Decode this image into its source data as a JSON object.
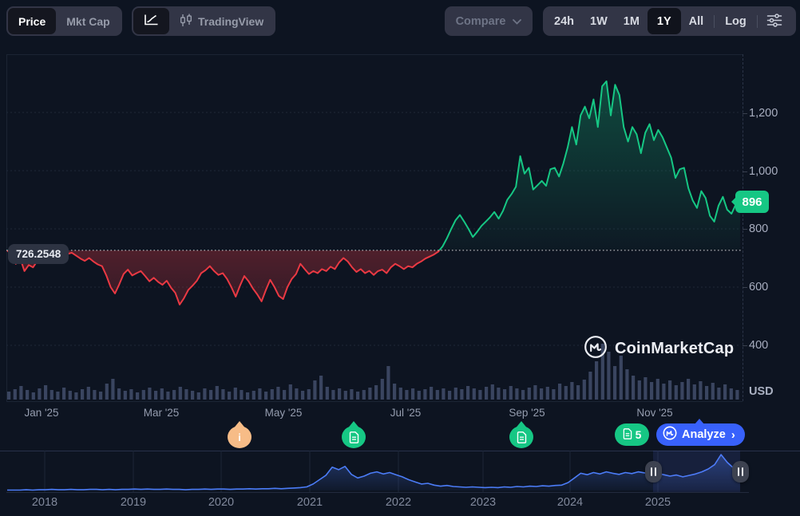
{
  "toolbar": {
    "price_label": "Price",
    "mktcap_label": "Mkt Cap",
    "tradingview_label": "TradingView",
    "compare_label": "Compare",
    "ranges": [
      "24h",
      "1W",
      "1M",
      "1Y",
      "All"
    ],
    "active_range": "1Y",
    "log_label": "Log"
  },
  "chart": {
    "baseline_label": "726.2548",
    "price_badge": "896",
    "y_axis_labels": [
      "1,200",
      "1,000",
      "800",
      "600",
      "400"
    ],
    "unit_label": "USD",
    "x_axis_labels": [
      "Jan '25",
      "Mar '25",
      "May '25",
      "Jul '25",
      "Sep '25",
      "Nov '25"
    ],
    "watermark": "CoinMarketCap"
  },
  "markers": {
    "info_label": "i",
    "news_count": "5",
    "analyze_label": "Analyze",
    "analyze_chevron": "›"
  },
  "minimap": {
    "year_labels": [
      "2018",
      "2019",
      "2020",
      "2021",
      "2022",
      "2023",
      "2024",
      "2025"
    ]
  },
  "chart_data": {
    "type": "line",
    "title": "Price chart, 1Y range, USD",
    "currency": "USD",
    "selected_range": "1Y",
    "baseline_value": 726.2548,
    "last_price": 896,
    "y_ticks": [
      1200,
      1000,
      800,
      600,
      400
    ],
    "x_tick_labels": [
      "Jan '25",
      "Mar '25",
      "May '25",
      "Jul '25",
      "Sep '25",
      "Nov '25"
    ],
    "positive_color": "#16c784",
    "negative_color": "#ea3943",
    "minimap_color": "#4b7cf7",
    "price_series": [
      726,
      712,
      680,
      700,
      655,
      676,
      668,
      690,
      700,
      692,
      705,
      698,
      710,
      703,
      714,
      718,
      708,
      698,
      690,
      700,
      688,
      678,
      672,
      640,
      600,
      578,
      610,
      645,
      660,
      640,
      648,
      655,
      638,
      620,
      632,
      618,
      608,
      622,
      598,
      580,
      540,
      562,
      590,
      605,
      622,
      648,
      658,
      672,
      655,
      642,
      648,
      628,
      600,
      567,
      605,
      638,
      620,
      595,
      575,
      551,
      590,
      625,
      600,
      570,
      559,
      600,
      628,
      645,
      680,
      662,
      645,
      655,
      648,
      662,
      655,
      670,
      662,
      685,
      700,
      688,
      668,
      652,
      662,
      648,
      656,
      642,
      655,
      660,
      648,
      668,
      680,
      672,
      662,
      672,
      668,
      680,
      688,
      698,
      705,
      712,
      722,
      740,
      768,
      800,
      830,
      848,
      825,
      800,
      772,
      790,
      810,
      825,
      840,
      858,
      835,
      862,
      900,
      920,
      945,
      1050,
      990,
      1010,
      935,
      950,
      965,
      948,
      1005,
      1010,
      980,
      1025,
      1080,
      1150,
      1090,
      1190,
      1220,
      1180,
      1245,
      1150,
      1290,
      1307,
      1190,
      1295,
      1260,
      1150,
      1100,
      1150,
      1125,
      1060,
      1130,
      1160,
      1105,
      1140,
      1115,
      1080,
      1045,
      975,
      1005,
      1010,
      940,
      898,
      872,
      930,
      906,
      845,
      825,
      880,
      910,
      866,
      852,
      884,
      896
    ],
    "volume_series": [
      10,
      13,
      17,
      12,
      9,
      14,
      18,
      12,
      10,
      15,
      11,
      9,
      13,
      16,
      12,
      10,
      20,
      26,
      14,
      11,
      13,
      9,
      12,
      15,
      11,
      14,
      10,
      12,
      16,
      13,
      11,
      9,
      14,
      12,
      17,
      13,
      10,
      15,
      12,
      9,
      11,
      14,
      10,
      13,
      16,
      12,
      19,
      14,
      11,
      13,
      24,
      30,
      16,
      12,
      14,
      11,
      13,
      10,
      12,
      15,
      18,
      26,
      42,
      20,
      15,
      12,
      14,
      11,
      13,
      16,
      12,
      14,
      11,
      15,
      13,
      17,
      14,
      12,
      16,
      19,
      15,
      13,
      17,
      14,
      12,
      15,
      18,
      14,
      16,
      13,
      20,
      17,
      22,
      18,
      25,
      35,
      48,
      70,
      60,
      42,
      55,
      38,
      30,
      24,
      28,
      22,
      26,
      20,
      24,
      18,
      22,
      26,
      19,
      23,
      17,
      21,
      15,
      19,
      14,
      12
    ],
    "minimap_series": [
      1,
      1,
      1,
      2,
      1,
      2,
      2,
      3,
      2,
      2,
      3,
      2,
      2,
      3,
      3,
      2,
      3,
      2,
      3,
      3,
      4,
      3,
      4,
      3,
      3,
      4,
      3,
      3,
      2,
      3,
      3,
      4,
      3,
      4,
      4,
      3,
      4,
      4,
      5,
      4,
      5,
      5,
      6,
      5,
      6,
      7,
      8,
      10,
      18,
      30,
      42,
      65,
      58,
      67,
      45,
      35,
      40,
      48,
      52,
      46,
      50,
      44,
      38,
      30,
      24,
      18,
      20,
      15,
      12,
      14,
      11,
      10,
      9,
      10,
      9,
      8,
      9,
      8,
      10,
      9,
      11,
      10,
      12,
      11,
      13,
      12,
      14,
      15,
      22,
      35,
      48,
      44,
      50,
      46,
      52,
      48,
      45,
      50,
      47,
      52,
      49,
      46,
      48,
      44,
      40,
      43,
      38,
      42,
      46,
      52,
      60,
      72,
      100,
      78,
      62,
      58
    ],
    "minimap_selection": {
      "start_frac": 0.8804,
      "end_frac": 0.9989
    }
  }
}
